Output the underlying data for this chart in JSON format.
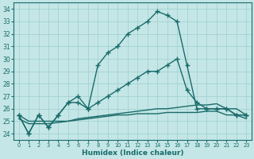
{
  "xlabel": "Humidex (Indice chaleur)",
  "xlim": [
    -0.5,
    23.5
  ],
  "ylim": [
    23.5,
    34.5
  ],
  "yticks": [
    24,
    25,
    26,
    27,
    28,
    29,
    30,
    31,
    32,
    33,
    34
  ],
  "xticks": [
    0,
    1,
    2,
    3,
    4,
    5,
    6,
    7,
    8,
    9,
    10,
    11,
    12,
    13,
    14,
    15,
    16,
    17,
    18,
    19,
    20,
    21,
    22,
    23
  ],
  "bg_color": "#c4e6e6",
  "grid_color": "#9ecece",
  "line_color": "#1a6b6b",
  "lines": [
    {
      "y": [
        25.5,
        24.0,
        25.5,
        24.5,
        25.5,
        26.5,
        27.0,
        26.0,
        29.5,
        30.5,
        31.0,
        32.0,
        32.5,
        33.0,
        33.8,
        33.5,
        33.0,
        29.5,
        26.0,
        26.0,
        26.0,
        26.0,
        25.5,
        25.5
      ],
      "marker": true,
      "lw": 1.0
    },
    {
      "y": [
        25.5,
        24.0,
        25.5,
        24.5,
        25.5,
        26.5,
        26.5,
        26.0,
        26.5,
        27.0,
        27.5,
        28.0,
        28.5,
        29.0,
        29.0,
        29.5,
        30.0,
        27.5,
        26.5,
        26.0,
        26.0,
        26.0,
        25.5,
        25.5
      ],
      "marker": true,
      "lw": 1.0
    },
    {
      "y": [
        25.5,
        25.0,
        25.0,
        25.0,
        25.0,
        25.0,
        25.2,
        25.3,
        25.4,
        25.5,
        25.6,
        25.7,
        25.8,
        25.9,
        26.0,
        26.0,
        26.1,
        26.2,
        26.3,
        26.3,
        26.4,
        26.0,
        26.0,
        25.5
      ],
      "marker": false,
      "lw": 1.0
    },
    {
      "y": [
        25.2,
        24.8,
        24.8,
        24.8,
        24.9,
        25.0,
        25.1,
        25.2,
        25.3,
        25.4,
        25.5,
        25.5,
        25.6,
        25.6,
        25.6,
        25.7,
        25.7,
        25.7,
        25.7,
        25.8,
        25.8,
        25.5,
        25.5,
        25.2
      ],
      "marker": false,
      "lw": 1.0
    }
  ],
  "marker_style": "+",
  "markersize": 4,
  "markeredgewidth": 1.0
}
